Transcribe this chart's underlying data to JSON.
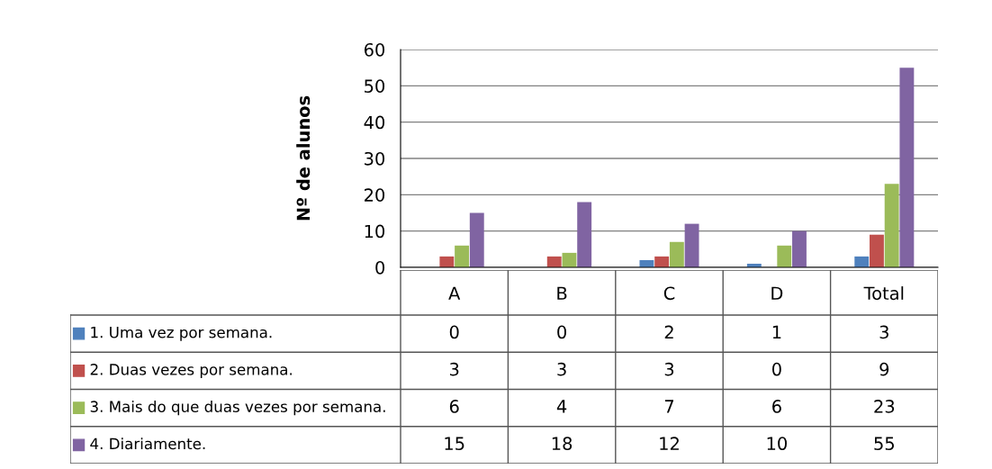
{
  "chart_data": {
    "type": "bar",
    "ylabel": "Nº de alunos",
    "categories": [
      "A",
      "B",
      "C",
      "D",
      "Total"
    ],
    "series": [
      {
        "name": "1. Uma vez por semana.",
        "color": "#4f81bd",
        "values": [
          0,
          0,
          2,
          1,
          3
        ]
      },
      {
        "name": "2. Duas vezes por semana.",
        "color": "#c0504d",
        "values": [
          3,
          3,
          3,
          0,
          9
        ]
      },
      {
        "name": "3. Mais do que duas vezes por semana.",
        "color": "#9bbb59",
        "values": [
          6,
          4,
          7,
          6,
          23
        ]
      },
      {
        "name": "4. Diariamente.",
        "color": "#8064a2",
        "values": [
          15,
          18,
          12,
          10,
          55
        ]
      }
    ],
    "ylim": [
      0,
      60
    ],
    "yticks": [
      0,
      10,
      20,
      30,
      40,
      50,
      60
    ],
    "grid": "y",
    "data_labels": true,
    "legend": "bottom left"
  }
}
